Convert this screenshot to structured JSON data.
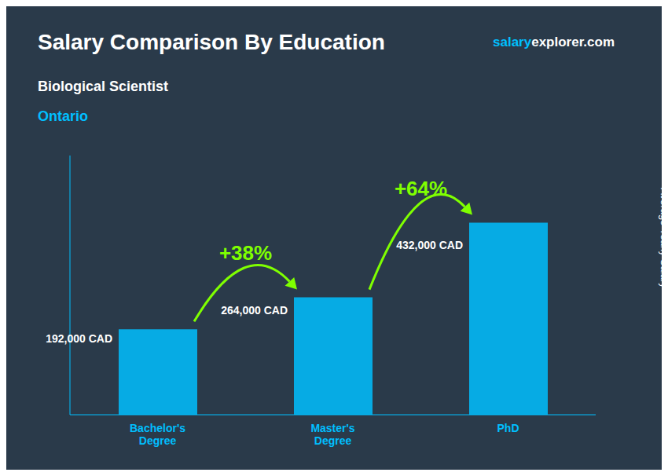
{
  "chart_data": {
    "type": "bar",
    "title": "Salary Comparison By Education",
    "subtitle": "Biological Scientist",
    "location": "Ontario",
    "ylabel": "Average Yearly Salary",
    "categories": [
      "Bachelor's\nDegree",
      "Master's\nDegree",
      "PhD"
    ],
    "values": [
      192000,
      264000,
      432000
    ],
    "value_labels": [
      "192,000 CAD",
      "264,000 CAD",
      "432,000 CAD"
    ],
    "data_labels": true,
    "pct_changes": [
      "+38%",
      "+64%"
    ],
    "annotations": [
      "salary",
      "explorer.com"
    ],
    "color": "#00BFFF",
    "ylim": [
      0,
      583200
    ],
    "tick_labels": "x",
    "grid": false
  }
}
